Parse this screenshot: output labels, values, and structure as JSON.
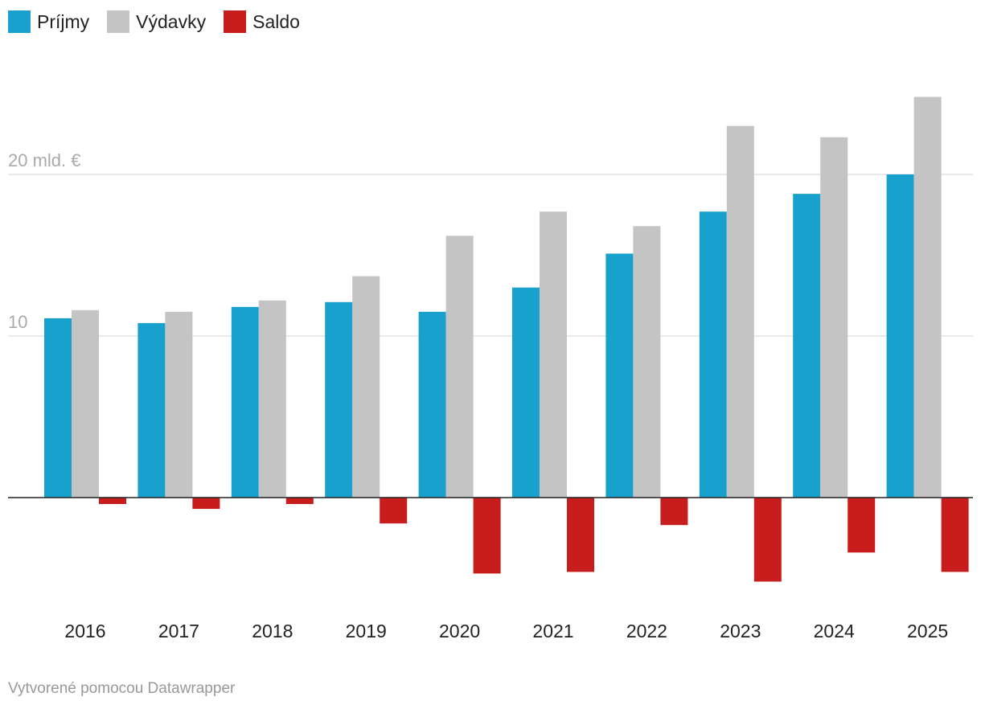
{
  "chart_data": {
    "type": "bar",
    "categories": [
      "2016",
      "2017",
      "2018",
      "2019",
      "2020",
      "2021",
      "2022",
      "2023",
      "2024",
      "2025"
    ],
    "series": [
      {
        "name": "Príjmy",
        "color": "#18a1cd",
        "values": [
          11.1,
          10.8,
          11.8,
          12.1,
          11.5,
          13.0,
          15.1,
          17.7,
          18.8,
          20.0
        ]
      },
      {
        "name": "Výdavky",
        "color": "#c4c4c4",
        "values": [
          11.6,
          11.5,
          12.2,
          13.7,
          16.2,
          17.7,
          16.8,
          23.0,
          22.3,
          24.8
        ]
      },
      {
        "name": "Saldo",
        "color": "#c71e1d",
        "values": [
          -0.4,
          -0.7,
          -0.4,
          -1.6,
          -4.7,
          -4.6,
          -1.7,
          -5.2,
          -3.4,
          -4.6
        ]
      }
    ],
    "yticks": [
      {
        "value": 10,
        "label": "10"
      },
      {
        "value": 20,
        "label": "20 mld. €"
      }
    ],
    "ylim": [
      -7,
      26
    ],
    "xlabel": "",
    "ylabel": "mld. €",
    "legend": "top-left"
  },
  "footer": {
    "credit": "Vytvorené pomocou Datawrapper"
  }
}
